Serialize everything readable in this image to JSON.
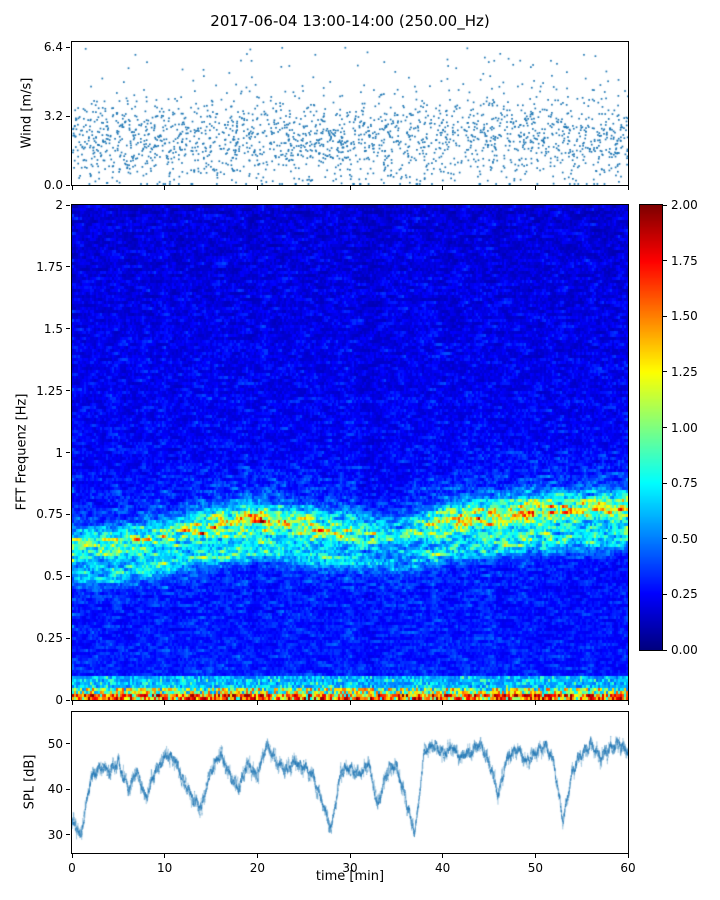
{
  "title": "2017-06-04 13:00-14:00 (250.00_Hz)",
  "x_axis": {
    "label": "time [min]",
    "ticks": [
      "0",
      "10",
      "20",
      "30",
      "40",
      "50",
      "60"
    ],
    "xlim": [
      0,
      60
    ]
  },
  "chart_data": [
    {
      "type": "scatter",
      "name": "wind-speed",
      "ylabel": "Wind [m/s]",
      "yticks": [
        "0.0",
        "3.2",
        "6.4"
      ],
      "ylim": [
        0,
        6.65
      ],
      "xlim": [
        0,
        60
      ],
      "marker_color": "#1f77b4",
      "n_points": 2100,
      "y_mean": 2.1,
      "y_sd": 1.05,
      "y_min": 0.05,
      "y_max": 6.4
    },
    {
      "type": "heatmap",
      "name": "fft-spectrogram",
      "ylabel": "FFT Frequenz [Hz]",
      "yticks": [
        "0",
        "0.25",
        "0.5",
        "0.75",
        "1",
        "1.25",
        "1.5",
        "1.75",
        "2"
      ],
      "ylim": [
        0,
        2
      ],
      "xlim": [
        0,
        60
      ],
      "colormap": "jet",
      "vmin": 0,
      "vmax": 2,
      "colorbar_ticks": [
        "0.00",
        "0.25",
        "0.50",
        "0.75",
        "1.00",
        "1.25",
        "1.50",
        "1.75",
        "2.00"
      ],
      "background_level": 0.2,
      "wave_band": {
        "t": [
          0,
          5,
          10,
          15,
          20,
          25,
          30,
          35,
          40,
          45,
          50,
          55,
          60
        ],
        "center_hz": [
          0.62,
          0.63,
          0.66,
          0.7,
          0.73,
          0.7,
          0.68,
          0.66,
          0.72,
          0.74,
          0.76,
          0.77,
          0.78
        ],
        "intensity": [
          0.8,
          0.9,
          1.0,
          1.1,
          1.2,
          1.1,
          0.9,
          0.6,
          1.1,
          1.2,
          1.2,
          1.1,
          1.2
        ],
        "secondary_offset_hz": -0.12,
        "sigma_hz": 0.045
      },
      "low_freq_band": {
        "below_hz": 0.06,
        "level": 1.8
      }
    },
    {
      "type": "line",
      "name": "spl",
      "ylabel": "SPL [dB]",
      "yticks": [
        "30",
        "40",
        "50"
      ],
      "ylim": [
        26,
        57
      ],
      "xlim": [
        0,
        60
      ],
      "line_color": "#1f77b4",
      "x": [
        0,
        1,
        2,
        3,
        4,
        5,
        6,
        7,
        8,
        9,
        10,
        11,
        12,
        13,
        14,
        15,
        16,
        17,
        18,
        19,
        20,
        21,
        22,
        23,
        24,
        25,
        26,
        27,
        28,
        29,
        30,
        31,
        32,
        33,
        34,
        35,
        36,
        37,
        38,
        39,
        40,
        41,
        42,
        43,
        44,
        45,
        46,
        47,
        48,
        49,
        50,
        51,
        52,
        53,
        54,
        55,
        56,
        57,
        58,
        59,
        60
      ],
      "values": [
        33,
        30,
        42,
        45,
        44,
        46,
        40,
        44,
        38,
        44,
        47,
        47,
        42,
        38,
        36,
        44,
        48,
        43,
        40,
        46,
        43,
        50,
        46,
        44,
        46,
        45,
        43,
        37,
        31,
        44,
        45,
        43,
        46,
        36,
        44,
        45,
        38,
        30,
        48,
        50,
        48,
        49,
        47,
        48,
        50,
        46,
        39,
        47,
        49,
        46,
        48,
        50,
        46,
        33,
        44,
        48,
        50,
        47,
        49,
        50,
        48
      ],
      "noise_band_db": 4
    }
  ]
}
